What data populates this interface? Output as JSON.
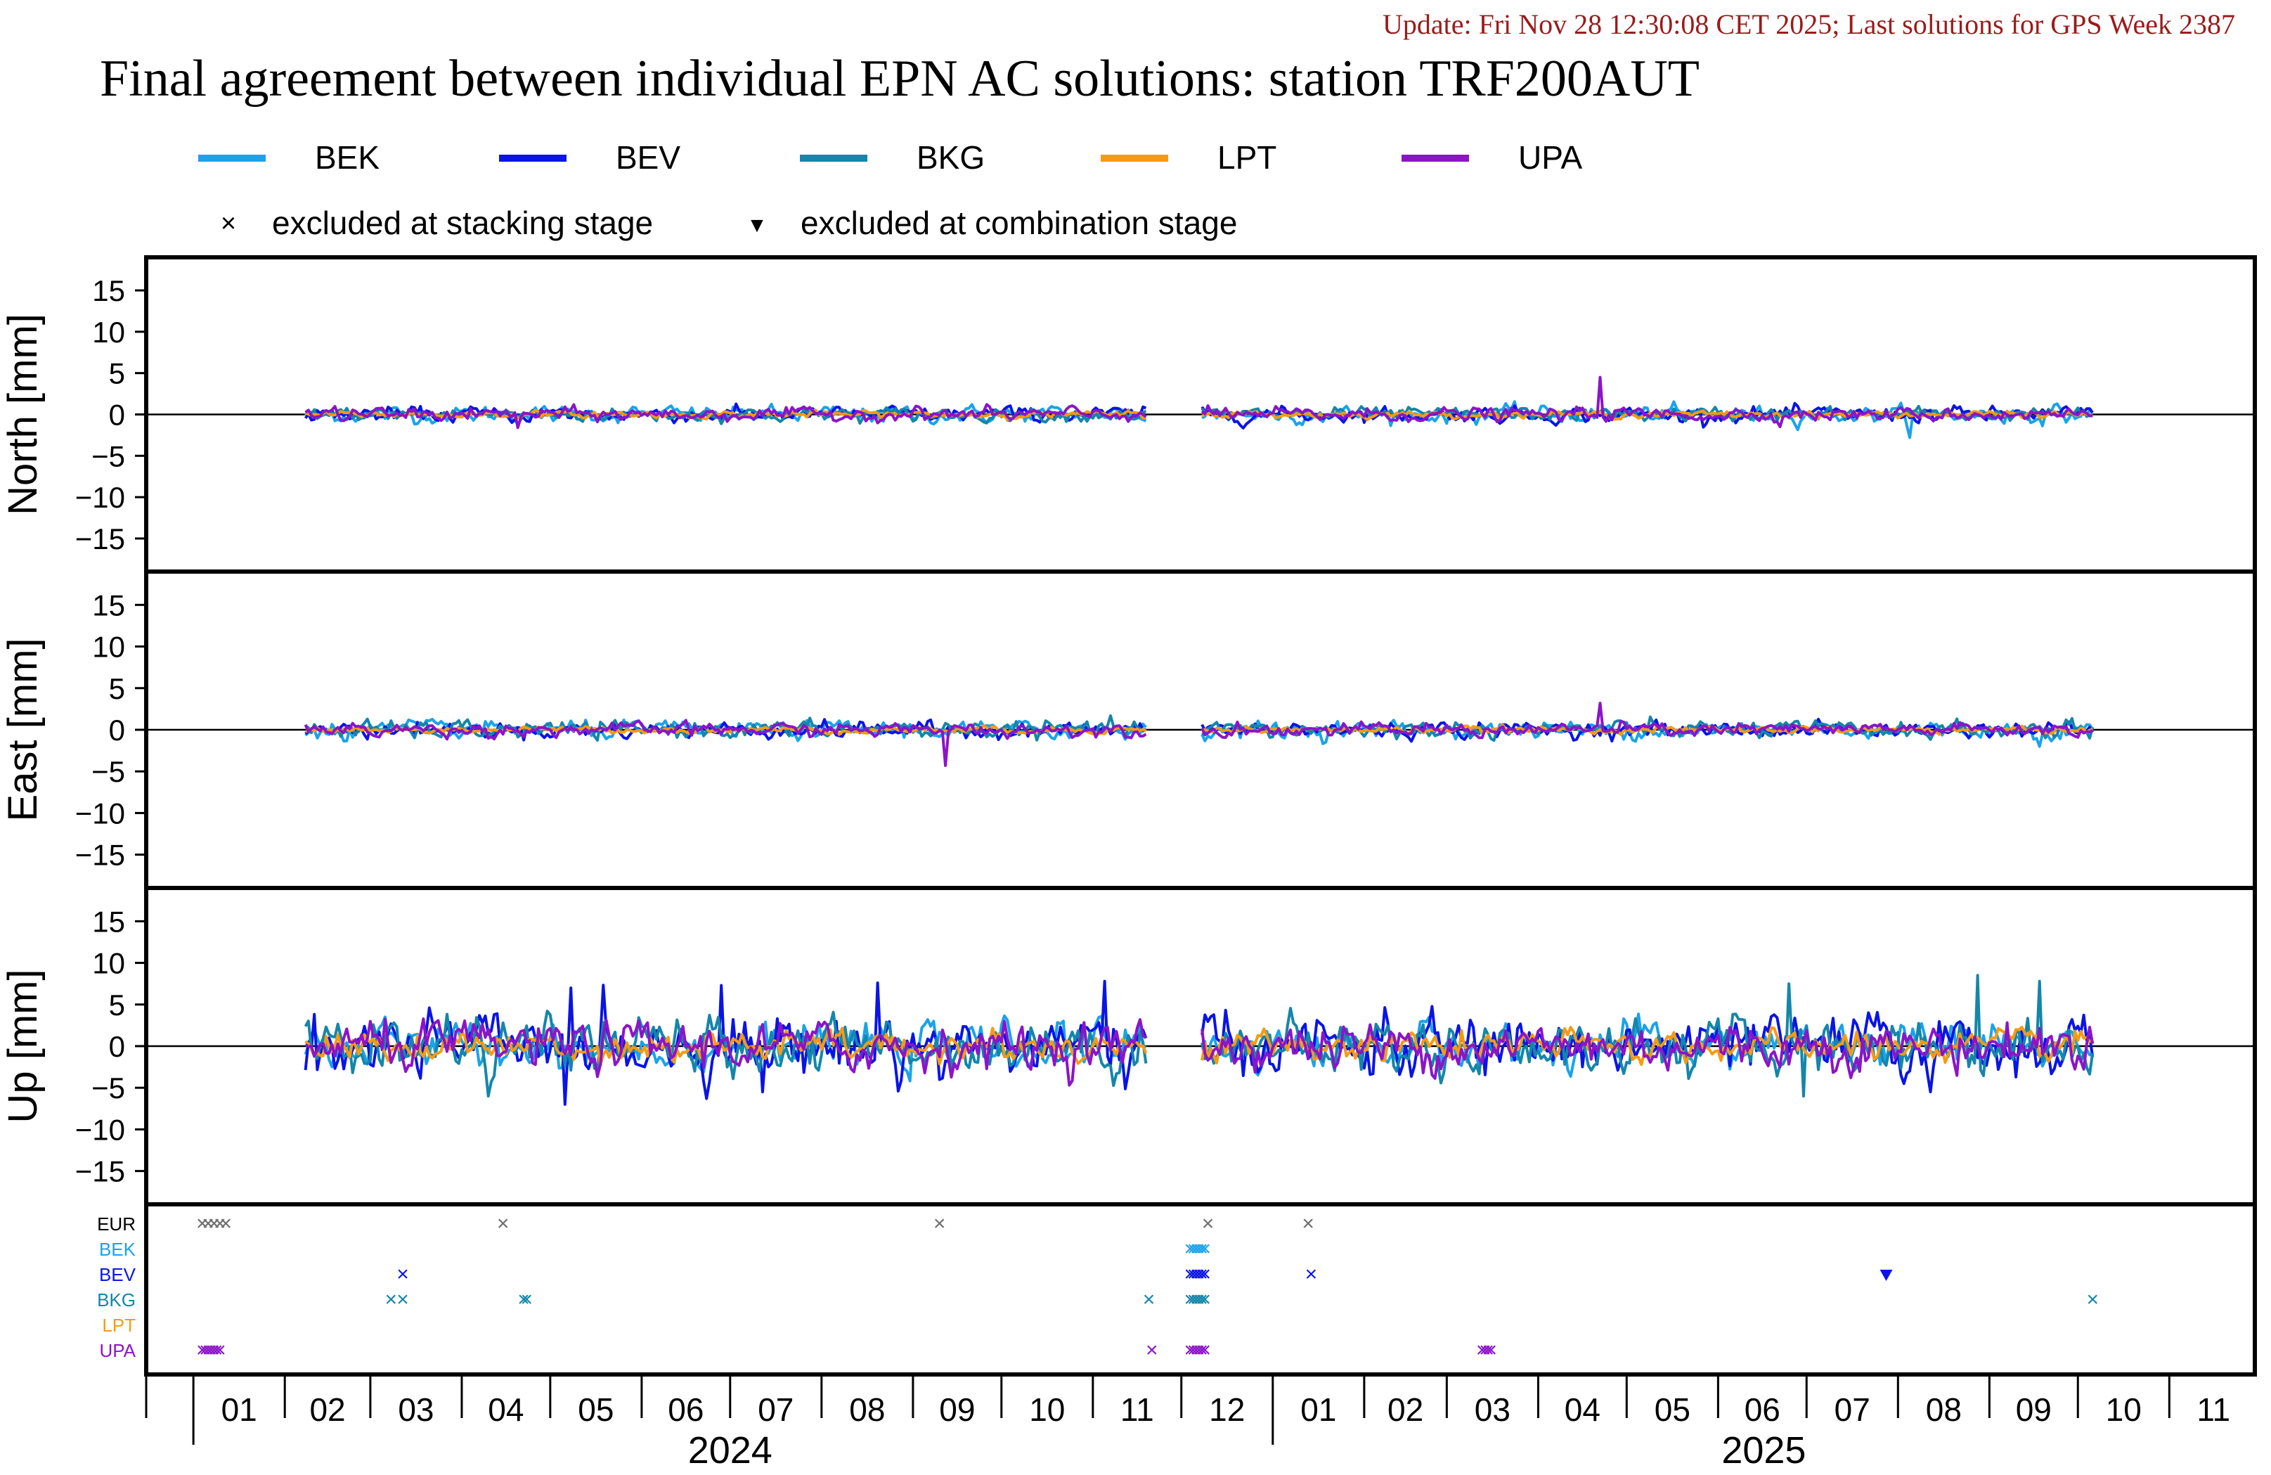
{
  "update_text": "Update: Fri Nov 28 12:30:08 CET 2025; Last solutions for GPS Week 2387",
  "title": "Final agreement between individual EPN AC solutions: station TRF200AUT",
  "legend": {
    "series": [
      {
        "name": "BEK",
        "color": "#1aa3ea"
      },
      {
        "name": "BEV",
        "color": "#0a14e6"
      },
      {
        "name": "BKG",
        "color": "#1486aa"
      },
      {
        "name": "LPT",
        "color": "#f79a12"
      },
      {
        "name": "UPA",
        "color": "#8c14c8"
      }
    ],
    "markers": [
      {
        "symbol": "×",
        "label": "excluded at stacking stage"
      },
      {
        "symbol": "▼",
        "label": "excluded at combination stage"
      }
    ]
  },
  "chart_data": {
    "type": "line",
    "x_unit": "month",
    "x_range": [
      "2023-12-16",
      "2025-11-30"
    ],
    "month_tick_labels": [
      "01",
      "02",
      "03",
      "04",
      "05",
      "06",
      "07",
      "08",
      "09",
      "10",
      "11",
      "12",
      "01",
      "02",
      "03",
      "04",
      "05",
      "06",
      "07",
      "08",
      "09",
      "10",
      "11"
    ],
    "year_labels": [
      {
        "text": "2024",
        "month_index": 6
      },
      {
        "text": "2025",
        "month_index": 17.5
      }
    ],
    "data_span": [
      "2024-02-08",
      "2025-10-06"
    ],
    "gaps": [
      [
        "2024-11-20",
        "2024-12-08"
      ]
    ],
    "panels": [
      {
        "key": "north",
        "ylabel": "North [mm]",
        "ylim": [
          -19,
          19
        ],
        "yticks": [
          15,
          10,
          5,
          0,
          -5,
          -10,
          -15
        ],
        "noise_mm": {
          "BEK": 0.5,
          "BEV": 0.45,
          "BKG": 0.4,
          "LPT": 0.2,
          "UPA": 0.4
        },
        "spikes": [
          {
            "series": "UPA",
            "date": "2025-04-22",
            "value": 4.5
          },
          {
            "series": "BEK",
            "date": "2025-08-05",
            "value": -2.8
          },
          {
            "series": "UPA",
            "date": "2024-04-20",
            "value": -1.6
          }
        ]
      },
      {
        "key": "east",
        "ylabel": "East [mm]",
        "ylim": [
          -19,
          19
        ],
        "yticks": [
          15,
          10,
          5,
          0,
          -5,
          -10,
          -15
        ],
        "noise_mm": {
          "BEK": 0.5,
          "BEV": 0.45,
          "BKG": 0.5,
          "LPT": 0.2,
          "UPA": 0.4
        },
        "spikes": [
          {
            "series": "UPA",
            "date": "2024-09-12",
            "value": -4.3
          },
          {
            "series": "UPA",
            "date": "2025-04-22",
            "value": 3.2
          },
          {
            "series": "BEK",
            "date": "2025-09-18",
            "value": -2.0
          }
        ]
      },
      {
        "key": "up",
        "ylabel": "Up [mm]",
        "ylim": [
          -19,
          19
        ],
        "yticks": [
          15,
          10,
          5,
          0,
          -5,
          -10,
          -15
        ],
        "noise_mm": {
          "BEK": 1.3,
          "BEV": 1.8,
          "BKG": 1.6,
          "LPT": 0.9,
          "UPA": 1.4
        },
        "spikes": [
          {
            "series": "BEV",
            "date": "2024-05-08",
            "value": 7.0
          },
          {
            "series": "BEV",
            "date": "2024-05-06",
            "value": -7.0
          },
          {
            "series": "BEV",
            "date": "2024-06-28",
            "value": 7.3
          },
          {
            "series": "BEV",
            "date": "2024-07-12",
            "value": -5.5
          },
          {
            "series": "BEV",
            "date": "2024-08-20",
            "value": 7.6
          },
          {
            "series": "BEV",
            "date": "2024-11-05",
            "value": 7.8
          },
          {
            "series": "BKG",
            "date": "2024-04-10",
            "value": -6.0
          },
          {
            "series": "BKG",
            "date": "2025-06-25",
            "value": 7.5
          },
          {
            "series": "BKG",
            "date": "2025-06-30",
            "value": -6.0
          },
          {
            "series": "BKG",
            "date": "2025-08-28",
            "value": 8.5
          },
          {
            "series": "BKG",
            "date": "2025-09-18",
            "value": 7.8
          },
          {
            "series": "BEV",
            "date": "2025-08-12",
            "value": -5.5
          }
        ]
      }
    ],
    "exclusions": {
      "rows": [
        {
          "label": "EUR",
          "color": "#6e6e6e"
        },
        {
          "label": "BEK",
          "color": "#1aa3ea"
        },
        {
          "label": "BEV",
          "color": "#0a14e6"
        },
        {
          "label": "BKG",
          "color": "#1486aa"
        },
        {
          "label": "LPT",
          "color": "#f79a12"
        },
        {
          "label": "UPA",
          "color": "#8c14c8"
        }
      ],
      "stacking": {
        "EUR": [
          "2024-01-04",
          "2024-01-06",
          "2024-01-08",
          "2024-01-10",
          "2024-01-12",
          "2024-04-15",
          "2024-09-10",
          "2024-12-10",
          "2025-01-13"
        ],
        "BEK": [
          "2024-12-04",
          "2024-12-05",
          "2024-12-06",
          "2024-12-07",
          "2024-12-08",
          "2024-12-09"
        ],
        "BEV": [
          "2024-03-12",
          "2024-12-04",
          "2024-12-05",
          "2024-12-06",
          "2024-12-07",
          "2024-12-08",
          "2024-12-09",
          "2025-01-14"
        ],
        "BKG": [
          "2024-03-08",
          "2024-03-12",
          "2024-04-22",
          "2024-04-23",
          "2024-11-20",
          "2024-12-04",
          "2024-12-05",
          "2024-12-06",
          "2024-12-07",
          "2024-12-08",
          "2024-12-09",
          "2025-10-06"
        ],
        "LPT": [],
        "UPA": [
          "2024-01-04",
          "2024-01-05",
          "2024-01-06",
          "2024-01-07",
          "2024-01-08",
          "2024-01-09",
          "2024-01-10",
          "2024-11-21",
          "2024-12-04",
          "2024-12-05",
          "2024-12-06",
          "2024-12-07",
          "2024-12-08",
          "2024-12-09",
          "2025-03-13",
          "2025-03-14",
          "2025-03-15",
          "2025-03-16"
        ]
      },
      "combination": {
        "BEV": [
          "2025-07-28"
        ]
      }
    }
  }
}
